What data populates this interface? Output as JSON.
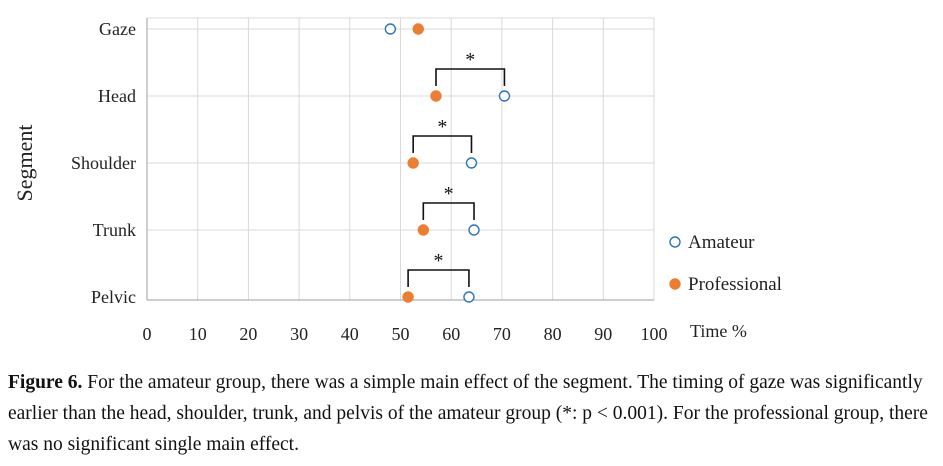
{
  "chart_data": {
    "type": "scatter",
    "orientation": "horizontal",
    "title": "",
    "ylabel": "Segment",
    "xlabel": "Time %",
    "xlim": [
      0,
      100
    ],
    "xticks": [
      "0",
      "10",
      "20",
      "30",
      "40",
      "50",
      "60",
      "70",
      "80",
      "90",
      "100"
    ],
    "categories": [
      "Gaze",
      "Head",
      "Shoulder",
      "Trunk",
      "Pelvic"
    ],
    "series": [
      {
        "name": "Amateur",
        "color": "#2e75b6",
        "fill": "none",
        "values": [
          48,
          70.5,
          64,
          64.5,
          63.5
        ]
      },
      {
        "name": "Professional",
        "color": "#ed7d31",
        "fill": "#ed7d31",
        "values": [
          53.5,
          57,
          52.5,
          54.5,
          51.5
        ]
      }
    ],
    "significance": [
      {
        "category": "Head",
        "from": 57,
        "to": 70.5,
        "label": "*"
      },
      {
        "category": "Shoulder",
        "from": 52.5,
        "to": 64,
        "label": "*"
      },
      {
        "category": "Trunk",
        "from": 54.5,
        "to": 64.5,
        "label": "*"
      },
      {
        "category": "Pelvic",
        "from": 51.5,
        "to": 63.5,
        "label": "*"
      }
    ],
    "grid": true,
    "legend_position": "right"
  },
  "caption": {
    "lead": "Figure 6.",
    "text": " For the amateur group, there was a simple main effect of the segment. The timing of gaze was significantly earlier than the head, shoulder, trunk, and pelvis of the amateur group (*: p < 0.001). For the professional group, there was no significant single main effect."
  }
}
